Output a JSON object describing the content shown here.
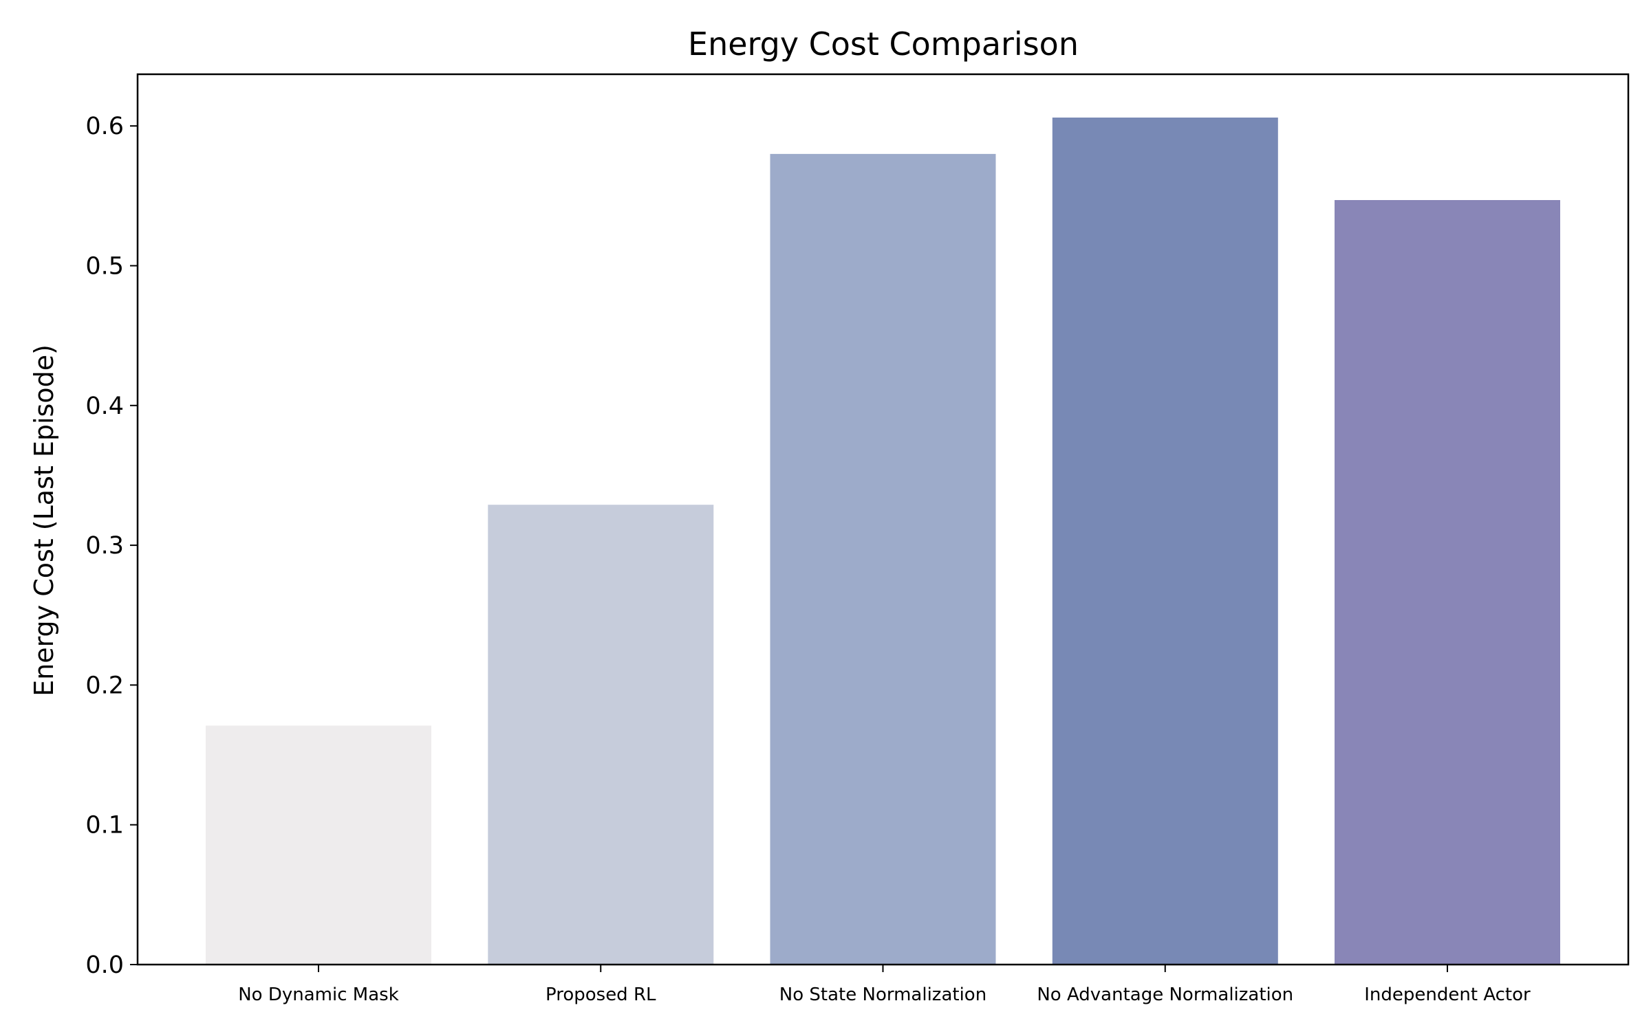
{
  "chart_data": {
    "type": "bar",
    "title": "Energy Cost Comparison",
    "xlabel": "",
    "ylabel": "Energy Cost (Last Episode)",
    "categories": [
      "No Dynamic Mask",
      "Proposed RL",
      "No State Normalization",
      "No Advantage Normalization",
      "Independent Actor"
    ],
    "values": [
      0.171,
      0.329,
      0.58,
      0.606,
      0.547
    ],
    "colors": [
      "#eeeced",
      "#c6ccdb",
      "#9dabca",
      "#7889b5",
      "#8986b7"
    ],
    "ylim": [
      0,
      0.637
    ],
    "yticks": [
      0.0,
      0.1,
      0.2,
      0.3,
      0.4,
      0.5,
      0.6
    ],
    "ytick_labels": [
      "0.0",
      "0.1",
      "0.2",
      "0.3",
      "0.4",
      "0.5",
      "0.6"
    ],
    "grid": false,
    "legend": "none"
  }
}
